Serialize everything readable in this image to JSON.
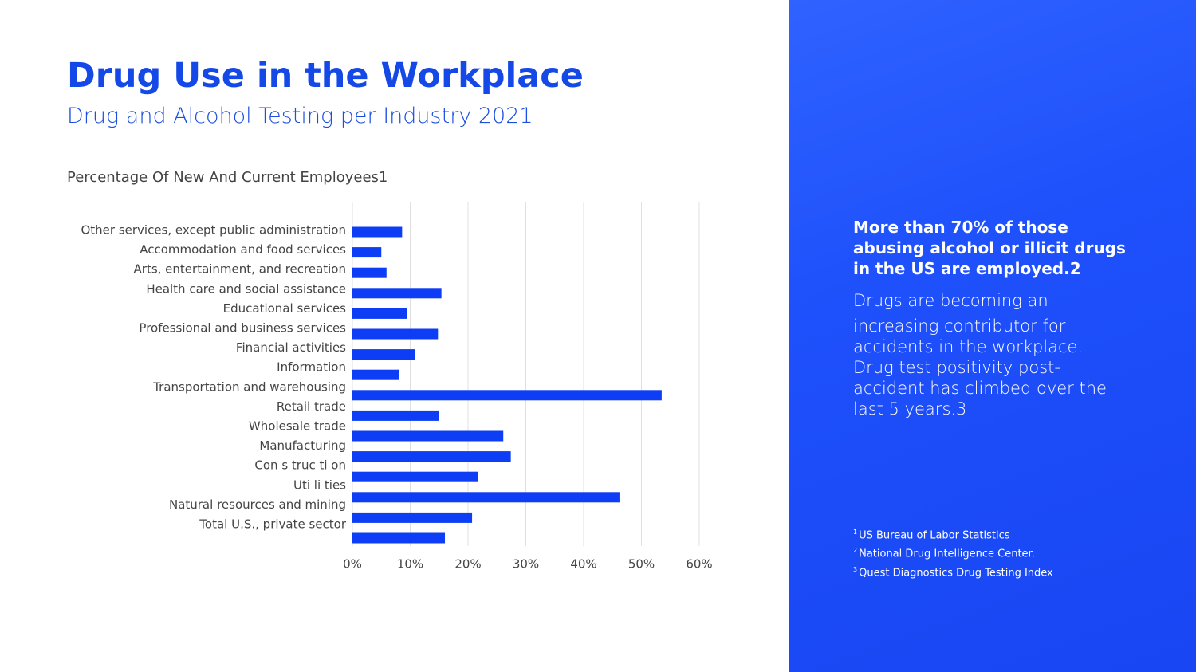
{
  "chart_data": {
    "type": "hbar",
    "title": "Drug Use in the Workplace",
    "subtitle": "Drug and Alcohol Testing per Industry 2021",
    "axis_label": "Percentage Of New And Current Employees1",
    "categories": [
      "Other services, except public administration",
      "Accommodation and food services",
      "Arts, entertainment, and recreation",
      "Health care and social assistance",
      "Educational services",
      "Professional and business services",
      "Financial activities",
      "Information",
      "Transportation and warehousing",
      "Retail trade",
      "Wholesale trade",
      "Manufacturing",
      "Con s truc ti on",
      "Uti li ties",
      "Natural resources and mining",
      "Total U.S., private sector"
    ],
    "values": [
      8.6,
      5.0,
      5.9,
      15.4,
      9.5,
      14.8,
      10.8,
      8.1,
      53.5,
      15.0,
      26.1,
      27.4,
      21.7,
      46.2,
      20.7,
      16.0
    ],
    "color": "#0d3ef5",
    "xlim": [
      0,
      60
    ],
    "xticks": [
      {
        "value": 0,
        "label": "0%"
      },
      {
        "value": 10,
        "label": "10%"
      },
      {
        "value": 20,
        "label": "20%"
      },
      {
        "value": 30,
        "label": "30%"
      },
      {
        "value": 40,
        "label": "40%"
      },
      {
        "value": 50,
        "label": "50%"
      },
      {
        "value": 60,
        "label": "60%"
      }
    ],
    "grid": true
  },
  "sidebar": {
    "headline": "More than 70% of those abusing alcohol or illicit drugs in the US are employed.2",
    "body": [
      "Drugs are becoming an",
      "increasing contributor for accidents in the workplace. Drug test positivity post-accident has climbed over the last 5 years.3"
    ],
    "footnotes": [
      {
        "mark": "1",
        "text": "US Bureau of Labor Statistics"
      },
      {
        "mark": "2",
        "text": "National Drug Intelligence Center."
      },
      {
        "mark": "3",
        "text": "Quest Diagnostics Drug Testing Index"
      }
    ]
  }
}
